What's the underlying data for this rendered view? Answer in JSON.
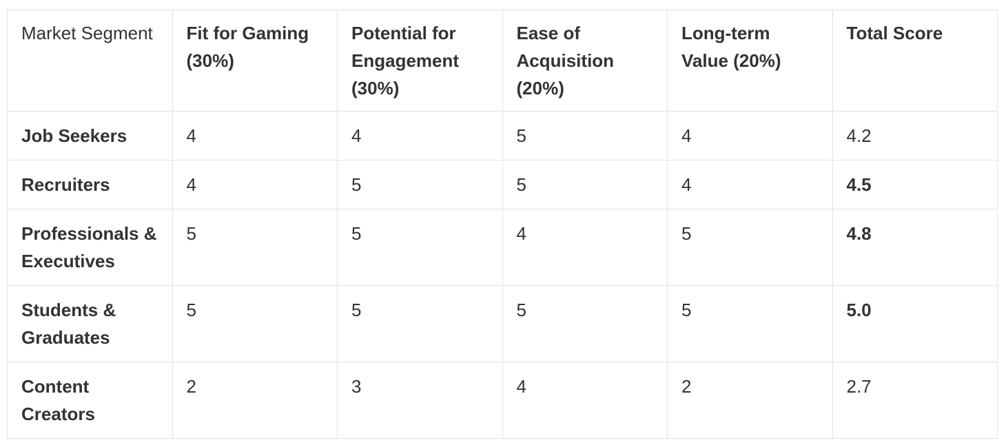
{
  "table": {
    "columns": [
      {
        "label": "Market Segment",
        "bold": false
      },
      {
        "label": "Fit for Gaming (30%)",
        "bold": true
      },
      {
        "label": "Potential for Engagement (30%)",
        "bold": true
      },
      {
        "label": "Ease of Acquisition (20%)",
        "bold": true
      },
      {
        "label": "Long-term Value (20%)",
        "bold": true
      },
      {
        "label": "Total Score",
        "bold": true
      }
    ],
    "rows": [
      {
        "segment": "Job Seekers",
        "fit": "4",
        "engagement": "4",
        "acquisition": "5",
        "value": "4",
        "total": "4.2",
        "total_bold": false
      },
      {
        "segment": "Recruiters",
        "fit": "4",
        "engagement": "5",
        "acquisition": "5",
        "value": "4",
        "total": "4.5",
        "total_bold": true
      },
      {
        "segment": "Professionals & Executives",
        "fit": "5",
        "engagement": "5",
        "acquisition": "4",
        "value": "5",
        "total": "4.8",
        "total_bold": true
      },
      {
        "segment": "Students & Graduates",
        "fit": "5",
        "engagement": "5",
        "acquisition": "5",
        "value": "5",
        "total": "5.0",
        "total_bold": true
      },
      {
        "segment": "Content Creators",
        "fit": "2",
        "engagement": "3",
        "acquisition": "4",
        "value": "2",
        "total": "2.7",
        "total_bold": false
      }
    ]
  },
  "chart_data": {
    "type": "table",
    "title": "",
    "columns": [
      "Market Segment",
      "Fit for Gaming (30%)",
      "Potential for Engagement (30%)",
      "Ease of Acquisition (20%)",
      "Long-term Value (20%)",
      "Total Score"
    ],
    "rows": [
      [
        "Job Seekers",
        4,
        4,
        5,
        4,
        4.2
      ],
      [
        "Recruiters",
        4,
        5,
        5,
        4,
        4.5
      ],
      [
        "Professionals & Executives",
        5,
        5,
        4,
        5,
        4.8
      ],
      [
        "Students & Graduates",
        5,
        5,
        5,
        5,
        5.0
      ],
      [
        "Content Creators",
        2,
        3,
        4,
        2,
        2.7
      ]
    ],
    "weights": {
      "Fit for Gaming": 0.3,
      "Potential for Engagement": 0.3,
      "Ease of Acquisition": 0.2,
      "Long-term Value": 0.2
    },
    "layout_hints": {
      "grid": true,
      "header_bold": true,
      "first_column_bold": true,
      "bold_totals": [
        4.5,
        4.8,
        5.0
      ]
    }
  },
  "colors": {
    "background": "#ffffff",
    "text": "#333333",
    "border": "#e3e3e3"
  }
}
